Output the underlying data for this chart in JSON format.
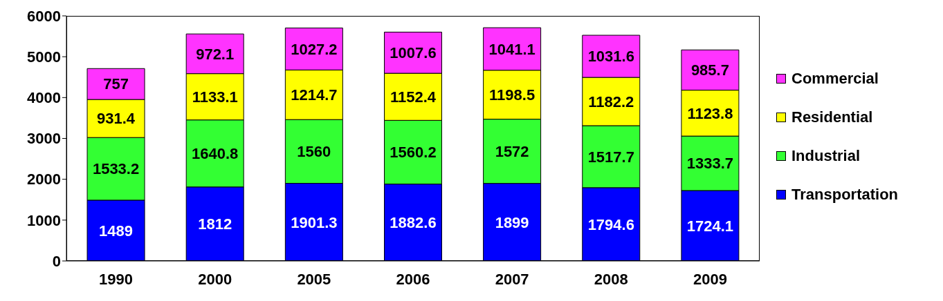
{
  "chart_data": {
    "type": "bar",
    "stacked": true,
    "categories": [
      "1990",
      "2000",
      "2005",
      "2006",
      "2007",
      "2008",
      "2009"
    ],
    "series": [
      {
        "name": "Transportation",
        "color": "#0000ff",
        "values": [
          1489,
          1812,
          1901.3,
          1882.6,
          1899,
          1794.6,
          1724.1
        ]
      },
      {
        "name": "Industrial",
        "color": "#33ff33",
        "values": [
          1533.2,
          1640.8,
          1560,
          1560.2,
          1572,
          1517.7,
          1333.7
        ]
      },
      {
        "name": "Residential",
        "color": "#ffff00",
        "values": [
          931.4,
          1133.1,
          1214.7,
          1152.4,
          1198.5,
          1182.2,
          1123.8
        ]
      },
      {
        "name": "Commercial",
        "color": "#ff33ff",
        "values": [
          757,
          972.1,
          1027.2,
          1007.6,
          1041.1,
          1031.6,
          985.7
        ]
      }
    ],
    "ylim": [
      0,
      6000
    ],
    "yticks": [
      0,
      1000,
      2000,
      3000,
      4000,
      5000,
      6000
    ],
    "grid": false,
    "legend": "right",
    "data_labels": true
  }
}
